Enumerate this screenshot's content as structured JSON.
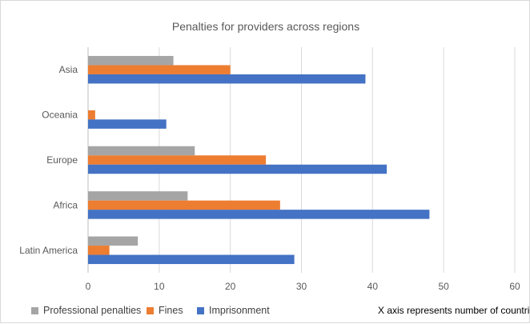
{
  "chart_data": {
    "type": "bar",
    "orientation": "horizontal",
    "title": "Penalties for providers across regions",
    "categories": [
      "Asia",
      "Oceania",
      "Europe",
      "Africa",
      "Latin America"
    ],
    "series": [
      {
        "name": "Professional penalties",
        "color": "#a5a5a5",
        "values": [
          12,
          0,
          15,
          14,
          7
        ]
      },
      {
        "name": "Fines",
        "color": "#ed7d31",
        "values": [
          20,
          1,
          25,
          27,
          3
        ]
      },
      {
        "name": "Imprisonment",
        "color": "#4472c4",
        "values": [
          39,
          11,
          42,
          48,
          29
        ]
      }
    ],
    "xlim": [
      0,
      60
    ],
    "xticks": [
      "0",
      "10",
      "20",
      "30",
      "40",
      "50",
      "60"
    ],
    "grid": true,
    "legend_position": "bottom-left",
    "annotation": "X axis represents number of countries"
  }
}
